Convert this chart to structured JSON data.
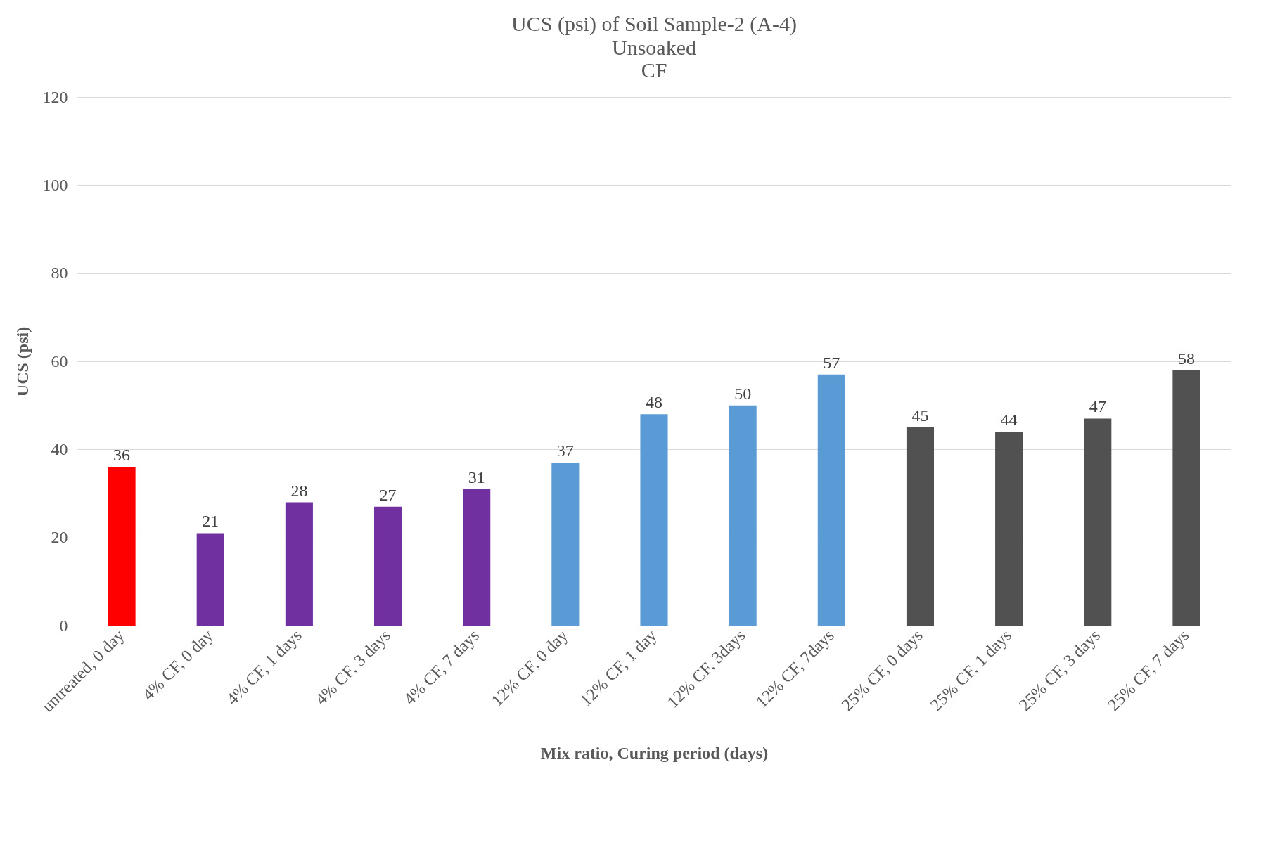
{
  "chart_data": {
    "type": "bar",
    "title": "UCS (psi) of Soil Sample-2 (A-4)",
    "subtitle": "Unsoaked\nCF",
    "xlabel": "Mix ratio, Curing period (days)",
    "ylabel": "UCS (psi)",
    "categories": [
      "untreated, 0 day",
      "4% CF, 0 day",
      "4% CF, 1 days",
      "4% CF, 3 days",
      "4% CF, 7 days",
      "12% CF, 0 day",
      "12% CF, 1 day",
      "12% CF, 3days",
      "12% CF,   7days",
      "25% CF, 0 days",
      "25% CF, 1 days",
      "25% CF, 3 days",
      "25% CF, 7 days"
    ],
    "values": [
      36,
      21,
      28,
      27,
      31,
      37,
      48,
      50,
      57,
      45,
      44,
      47,
      58
    ],
    "colors": [
      "#ff0000",
      "#7030a0",
      "#7030a0",
      "#7030a0",
      "#7030a0",
      "#5b9bd5",
      "#5b9bd5",
      "#5b9bd5",
      "#5b9bd5",
      "#515151",
      "#515151",
      "#515151",
      "#515151"
    ],
    "ylim": [
      0,
      120
    ],
    "yticks": [
      0,
      20,
      40,
      60,
      80,
      100,
      120
    ],
    "grid": "y",
    "data_labels": true
  }
}
